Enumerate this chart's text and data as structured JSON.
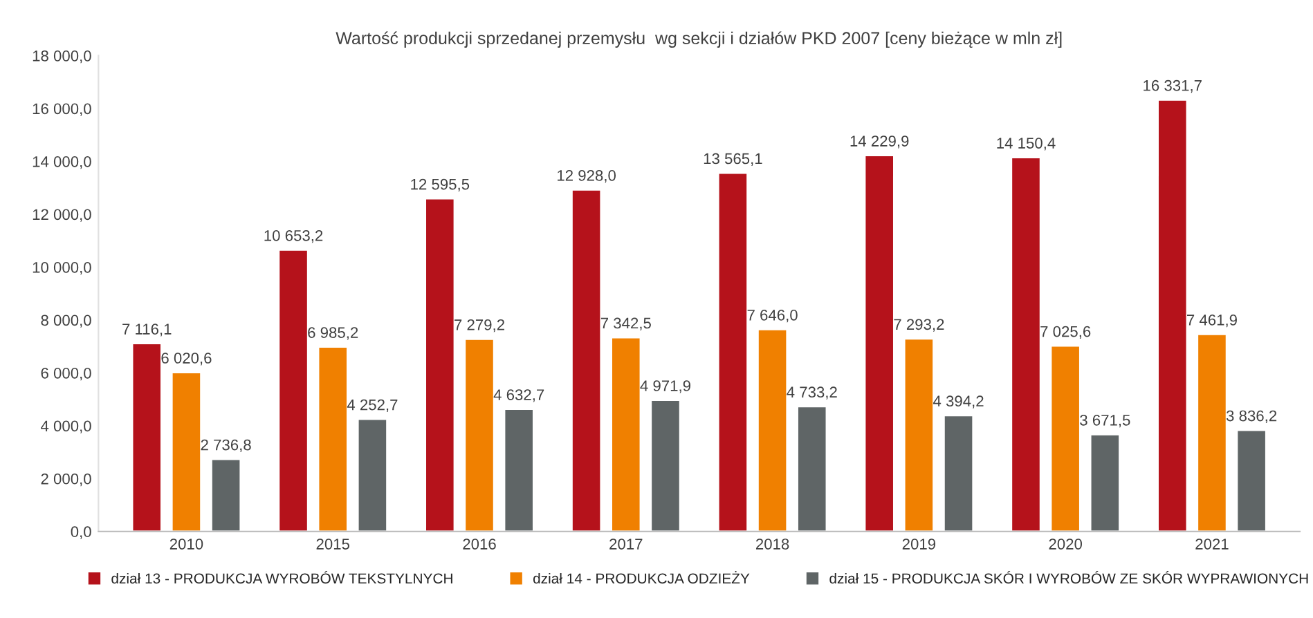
{
  "chart_data": {
    "type": "bar",
    "title": "Wartość produkcji sprzedanej przemysłu  wg sekcji i działów PKD 2007 [ceny bieżące w mln zł]",
    "categories": [
      "2010",
      "2015",
      "2016",
      "2017",
      "2018",
      "2019",
      "2020",
      "2021"
    ],
    "series": [
      {
        "name": "dział 13 - PRODUKCJA WYROBÓW TEKSTYLNYCH",
        "color": "#b5121b",
        "values": [
          7116.1,
          10653.2,
          12595.5,
          12928.0,
          13565.1,
          14229.9,
          14150.4,
          16331.7
        ],
        "value_labels": [
          "7 116,1",
          "10 653,2",
          "12 595,5",
          "12 928,0",
          "13 565,1",
          "14 229,9",
          "14 150,4",
          "16 331,7"
        ]
      },
      {
        "name": "dział 14 - PRODUKCJA ODZIEŻY",
        "color": "#f08000",
        "values": [
          6020.6,
          6985.2,
          7279.2,
          7342.5,
          7646.0,
          7293.2,
          7025.6,
          7461.9
        ],
        "value_labels": [
          "6 020,6",
          "6 985,2",
          "7 279,2",
          "7 342,5",
          "7 646,0",
          "7 293,2",
          "7 025,6",
          "7 461,9"
        ]
      },
      {
        "name": "dział 15 - PRODUKCJA SKÓR I WYROBÓW ZE SKÓR WYPRAWIONYCH",
        "color": "#5f6566",
        "values": [
          2736.8,
          4252.7,
          4632.7,
          4971.9,
          4733.2,
          4394.2,
          3671.5,
          3836.2
        ],
        "value_labels": [
          "2 736,8",
          "4 252,7",
          "4 632,7",
          "4 971,9",
          "4 733,2",
          "4 394,2",
          "3 671,5",
          "3 836,2"
        ]
      }
    ],
    "ylim": [
      0,
      18000
    ],
    "yticks": [
      {
        "value": 0,
        "label": "0,0"
      },
      {
        "value": 2000,
        "label": "2 000,0"
      },
      {
        "value": 4000,
        "label": "4 000,0"
      },
      {
        "value": 6000,
        "label": "6 000,0"
      },
      {
        "value": 8000,
        "label": "8 000,0"
      },
      {
        "value": 10000,
        "label": "10 000,0"
      },
      {
        "value": 12000,
        "label": "12 000,0"
      },
      {
        "value": 14000,
        "label": "14 000,0"
      },
      {
        "value": 16000,
        "label": "16 000,0"
      },
      {
        "value": 18000,
        "label": "18 000,0"
      }
    ],
    "legend": "bottom"
  }
}
